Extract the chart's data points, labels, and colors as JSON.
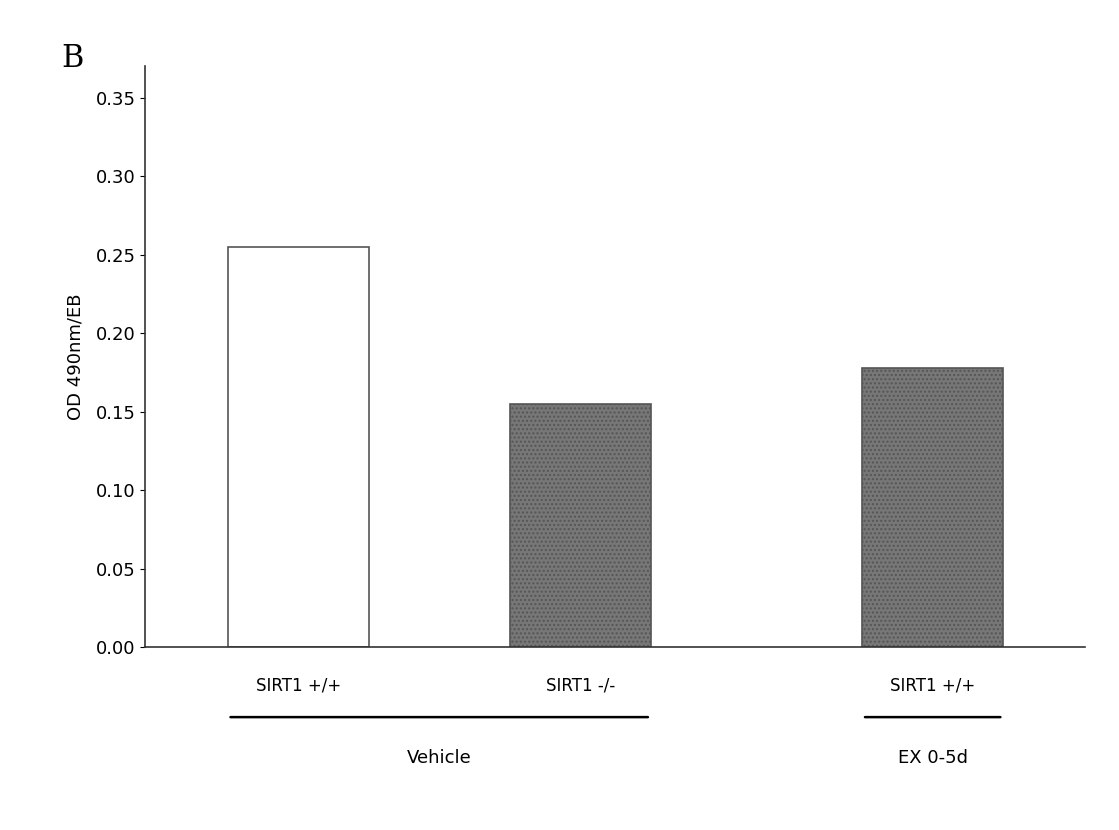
{
  "panel_label": "B",
  "bar_labels": [
    "SIRT1 +/+",
    "SIRT1 -/-",
    "SIRT1 +/+"
  ],
  "bar_values": [
    0.255,
    0.155,
    0.178
  ],
  "bar_colors": [
    "white",
    "#777777",
    "#777777"
  ],
  "bar_hatches": [
    "",
    "....",
    "...."
  ],
  "bar_edgecolors": [
    "#555555",
    "#555555",
    "#555555"
  ],
  "group_labels": [
    "Vehicle",
    "EX 0-5d"
  ],
  "ylabel": "OD 490nm/EB",
  "ylim": [
    0.0,
    0.37
  ],
  "yticks": [
    0.0,
    0.05,
    0.1,
    0.15,
    0.2,
    0.25,
    0.3,
    0.35
  ],
  "background_color": "#ffffff",
  "ylabel_fontsize": 13,
  "tick_fontsize": 13,
  "label_fontsize": 12,
  "group_fontsize": 13,
  "bar_width": 0.6,
  "bar_positions": [
    1.0,
    2.2,
    3.7
  ]
}
